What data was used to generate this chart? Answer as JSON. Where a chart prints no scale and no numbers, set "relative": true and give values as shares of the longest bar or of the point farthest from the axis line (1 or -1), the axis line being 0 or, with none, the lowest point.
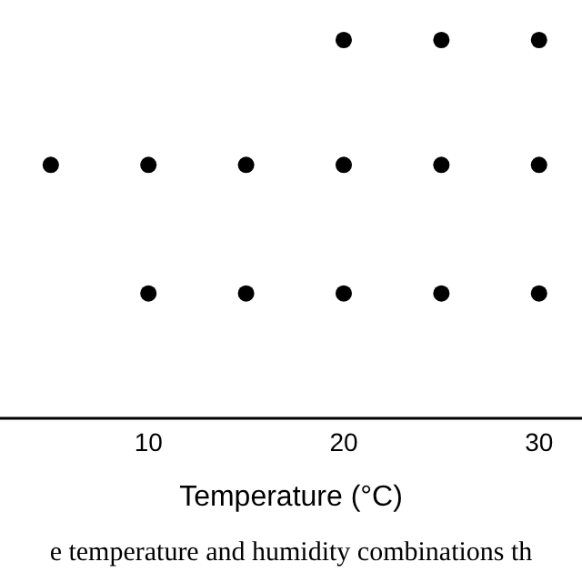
{
  "chart_data": {
    "type": "scatter",
    "xlabel": "Temperature (°C)",
    "relative": true,
    "x": [
      20,
      25,
      30,
      5,
      10,
      15,
      20,
      25,
      30,
      10,
      15,
      20,
      25,
      30
    ],
    "series": [
      {
        "color": "#000000",
        "values": [
          1,
          1,
          1,
          0.67,
          0.67,
          0.67,
          0.67,
          0.67,
          0.67,
          0.33,
          0.33,
          0.33,
          0.33,
          0.33
        ]
      }
    ],
    "xlim": [
      2.4,
      32.2
    ],
    "xticks": [
      10,
      20,
      30
    ],
    "marker": "circle",
    "annotations": [
      "e temperature and humidity combinations th"
    ]
  }
}
